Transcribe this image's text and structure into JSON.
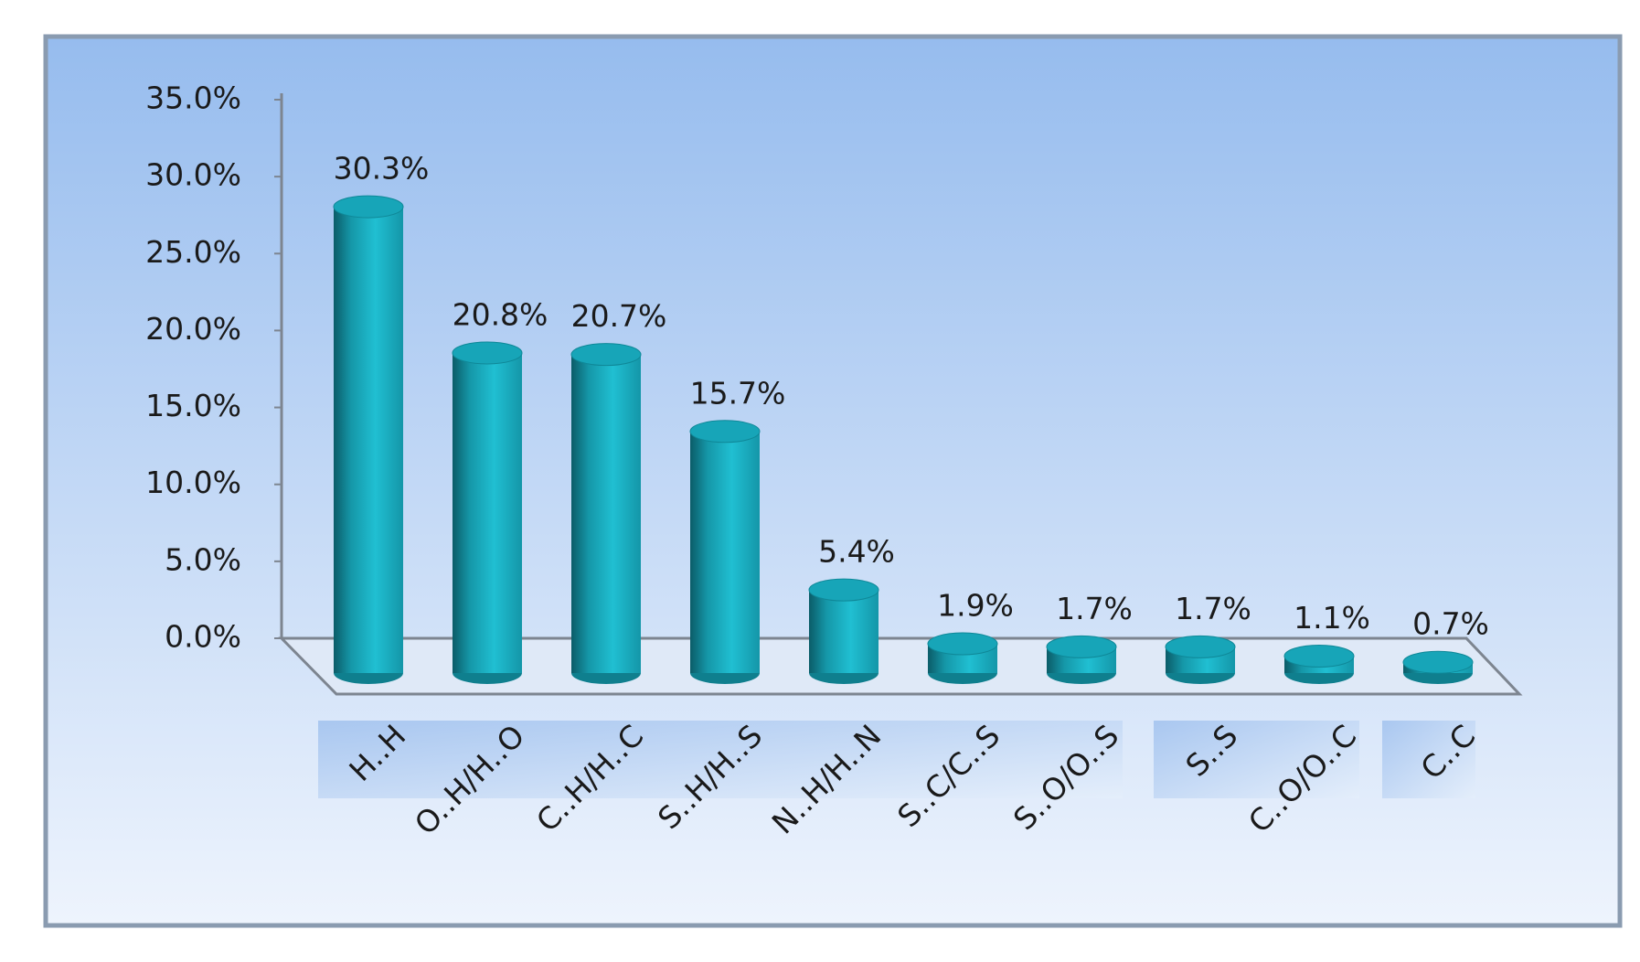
{
  "chart_data": {
    "type": "bar3d",
    "categories": [
      "H..H",
      "O..H/H..O",
      "C..H/H..C",
      "S..H/H..S",
      "N..H/H..N",
      "S..C/C..S",
      "S..O/O..S",
      "S..S",
      "C..O/O..C",
      "C..C"
    ],
    "values": [
      30.3,
      20.8,
      20.7,
      15.7,
      5.4,
      1.9,
      1.7,
      1.7,
      1.1,
      0.7
    ],
    "value_labels": [
      "30.3%",
      "20.8%",
      "20.7%",
      "15.7%",
      "5.4%",
      "1.9%",
      "1.7%",
      "1.7%",
      "1.1%",
      "0.7%"
    ],
    "color": "#1aaabf",
    "ylim": [
      0,
      35
    ],
    "yticks": [
      {
        "value": 0,
        "label": "0.0%"
      },
      {
        "value": 5,
        "label": "5.0%"
      },
      {
        "value": 10,
        "label": "10.0%"
      },
      {
        "value": 15,
        "label": "15.0%"
      },
      {
        "value": 20,
        "label": "20.0%"
      },
      {
        "value": 25,
        "label": "25.0%"
      },
      {
        "value": 30,
        "label": "30.0%"
      },
      {
        "value": 35,
        "label": "35.0%"
      }
    ]
  }
}
